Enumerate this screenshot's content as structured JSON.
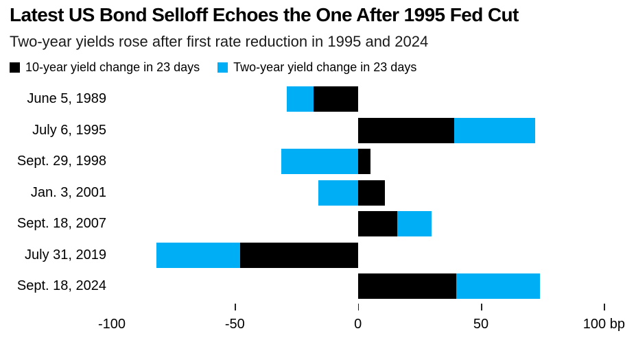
{
  "chart_data": {
    "type": "bar",
    "orientation": "horizontal",
    "stacked": true,
    "title": "Latest US Bond Selloff Echoes the One After 1995 Fed Cut",
    "subtitle": "Two-year yields rose after first rate reduction in 1995 and 2024",
    "unit": "bp",
    "grid": false,
    "legend_position": "top-left",
    "categories": [
      "June 5, 1989",
      "July 6, 1995",
      "Sept. 29, 1998",
      "Jan. 3, 2001",
      "Sept. 18, 2007",
      "July 31, 2019",
      "Sept. 18, 2024"
    ],
    "series": [
      {
        "name": "10-year yield change in 23 days",
        "color": "#000000",
        "values": [
          -18,
          39,
          5,
          11,
          16,
          -48,
          40
        ]
      },
      {
        "name": "Two-year yield change in 23 days",
        "color": "#00aef5",
        "values": [
          -11,
          33,
          -31,
          -16,
          14,
          -34,
          34
        ]
      }
    ],
    "xlim": [
      -100,
      113
    ],
    "x_ticks": [
      {
        "value": -100,
        "label": "-100",
        "tick_mark": false
      },
      {
        "value": -50,
        "label": "-50",
        "tick_mark": true
      },
      {
        "value": 0,
        "label": "0",
        "tick_mark": true
      },
      {
        "value": 50,
        "label": "50",
        "tick_mark": true
      },
      {
        "value": 100,
        "label": "100 bp",
        "tick_mark": true
      }
    ]
  }
}
